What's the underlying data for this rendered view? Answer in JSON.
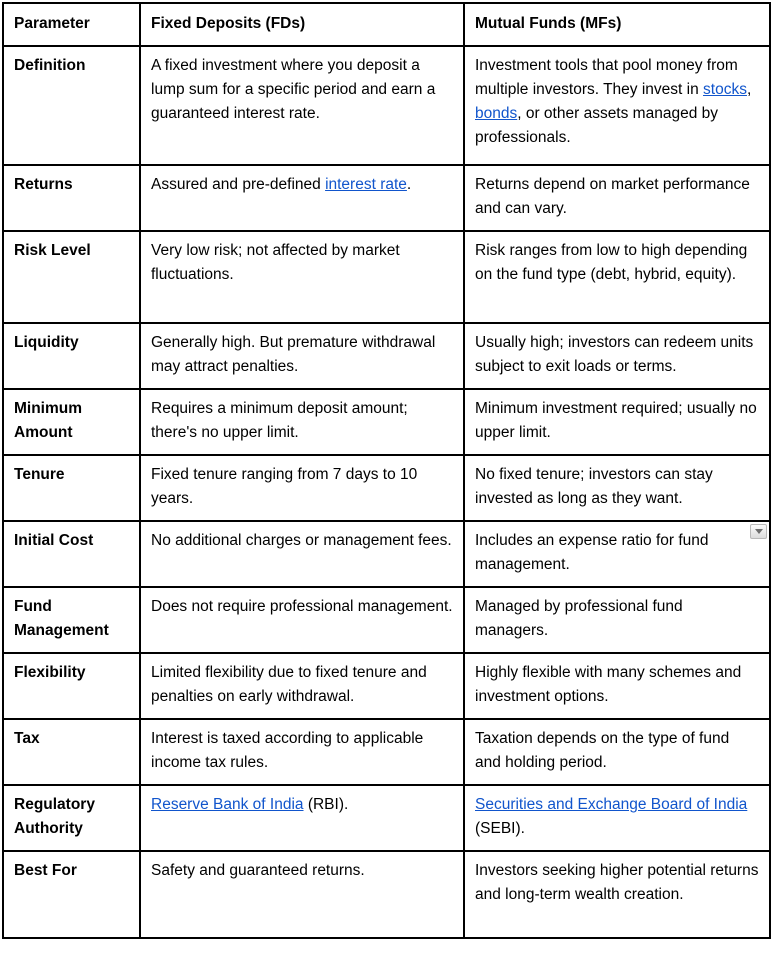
{
  "colors": {
    "border": "#000000",
    "text": "#000000",
    "link": "#1155cc",
    "background": "#ffffff"
  },
  "table": {
    "headers": [
      "Parameter",
      "Fixed Deposits (FDs)",
      "Mutual Funds (MFs)"
    ],
    "rows": [
      {
        "parameter": "Definition",
        "fd": [
          {
            "text": "A fixed investment where you deposit a lump sum for a specific period and earn a guaranteed interest rate."
          }
        ],
        "mf": [
          {
            "text": "Investment tools that pool money from multiple investors. They invest in "
          },
          {
            "text": "stocks",
            "link": true
          },
          {
            "text": ", "
          },
          {
            "text": "bonds",
            "link": true
          },
          {
            "text": ", or other assets managed by professionals."
          }
        ]
      },
      {
        "parameter": "Returns",
        "fd": [
          {
            "text": "Assured and pre-defined "
          },
          {
            "text": "interest rate",
            "link": true
          },
          {
            "text": "."
          }
        ],
        "mf": [
          {
            "text": "Returns depend on market performance and can vary."
          }
        ]
      },
      {
        "parameter": "Risk Level",
        "fd": [
          {
            "text": "Very low risk; not affected by market fluctuations."
          }
        ],
        "mf": [
          {
            "text": "Risk ranges from low to high depending on the fund type (debt, hybrid, equity)."
          }
        ]
      },
      {
        "parameter": "Liquidity",
        "fd": [
          {
            "text": "Generally high. But premature withdrawal may attract penalties."
          }
        ],
        "mf": [
          {
            "text": "Usually high; investors can redeem units subject to exit loads or terms."
          }
        ]
      },
      {
        "parameter": "Minimum Amount",
        "fd": [
          {
            "text": "Requires a minimum deposit amount; there's no upper limit."
          }
        ],
        "mf": [
          {
            "text": "Minimum investment required; usually no upper limit."
          }
        ]
      },
      {
        "parameter": "Tenure",
        "fd": [
          {
            "text": "Fixed tenure ranging from 7 days to 10 years."
          }
        ],
        "mf": [
          {
            "text": "No fixed tenure; investors can stay invested as long as they want."
          }
        ]
      },
      {
        "parameter": "Initial Cost",
        "fd": [
          {
            "text": "No additional charges or management fees."
          }
        ],
        "mf": [
          {
            "text": "Includes an expense ratio for fund management."
          }
        ],
        "dropdown_marker": true
      },
      {
        "parameter": "Fund Management",
        "fd": [
          {
            "text": "Does not require professional management."
          }
        ],
        "mf": [
          {
            "text": "Managed by professional fund managers."
          }
        ]
      },
      {
        "parameter": "Flexibility",
        "fd": [
          {
            "text": "Limited flexibility due to fixed tenure and penalties on early withdrawal."
          }
        ],
        "mf": [
          {
            "text": "Highly flexible with many schemes and investment options."
          }
        ]
      },
      {
        "parameter": "Tax",
        "fd": [
          {
            "text": "Interest is taxed according to applicable income tax rules."
          }
        ],
        "mf": [
          {
            "text": "Taxation depends on the type of fund and holding period."
          }
        ]
      },
      {
        "parameter": "Regulatory Authority",
        "fd": [
          {
            "text": "Reserve Bank of India",
            "link": true
          },
          {
            "text": " (RBI)."
          }
        ],
        "mf": [
          {
            "text": "Securities and Exchange Board of India",
            "link": true
          },
          {
            "text": " (SEBI)."
          }
        ]
      },
      {
        "parameter": "Best For",
        "fd": [
          {
            "text": "Safety and guaranteed returns."
          }
        ],
        "mf": [
          {
            "text": "Investors seeking higher potential returns and long-term wealth creation."
          }
        ]
      }
    ]
  },
  "icons": {
    "dropdown_marker": "chevron-down"
  }
}
